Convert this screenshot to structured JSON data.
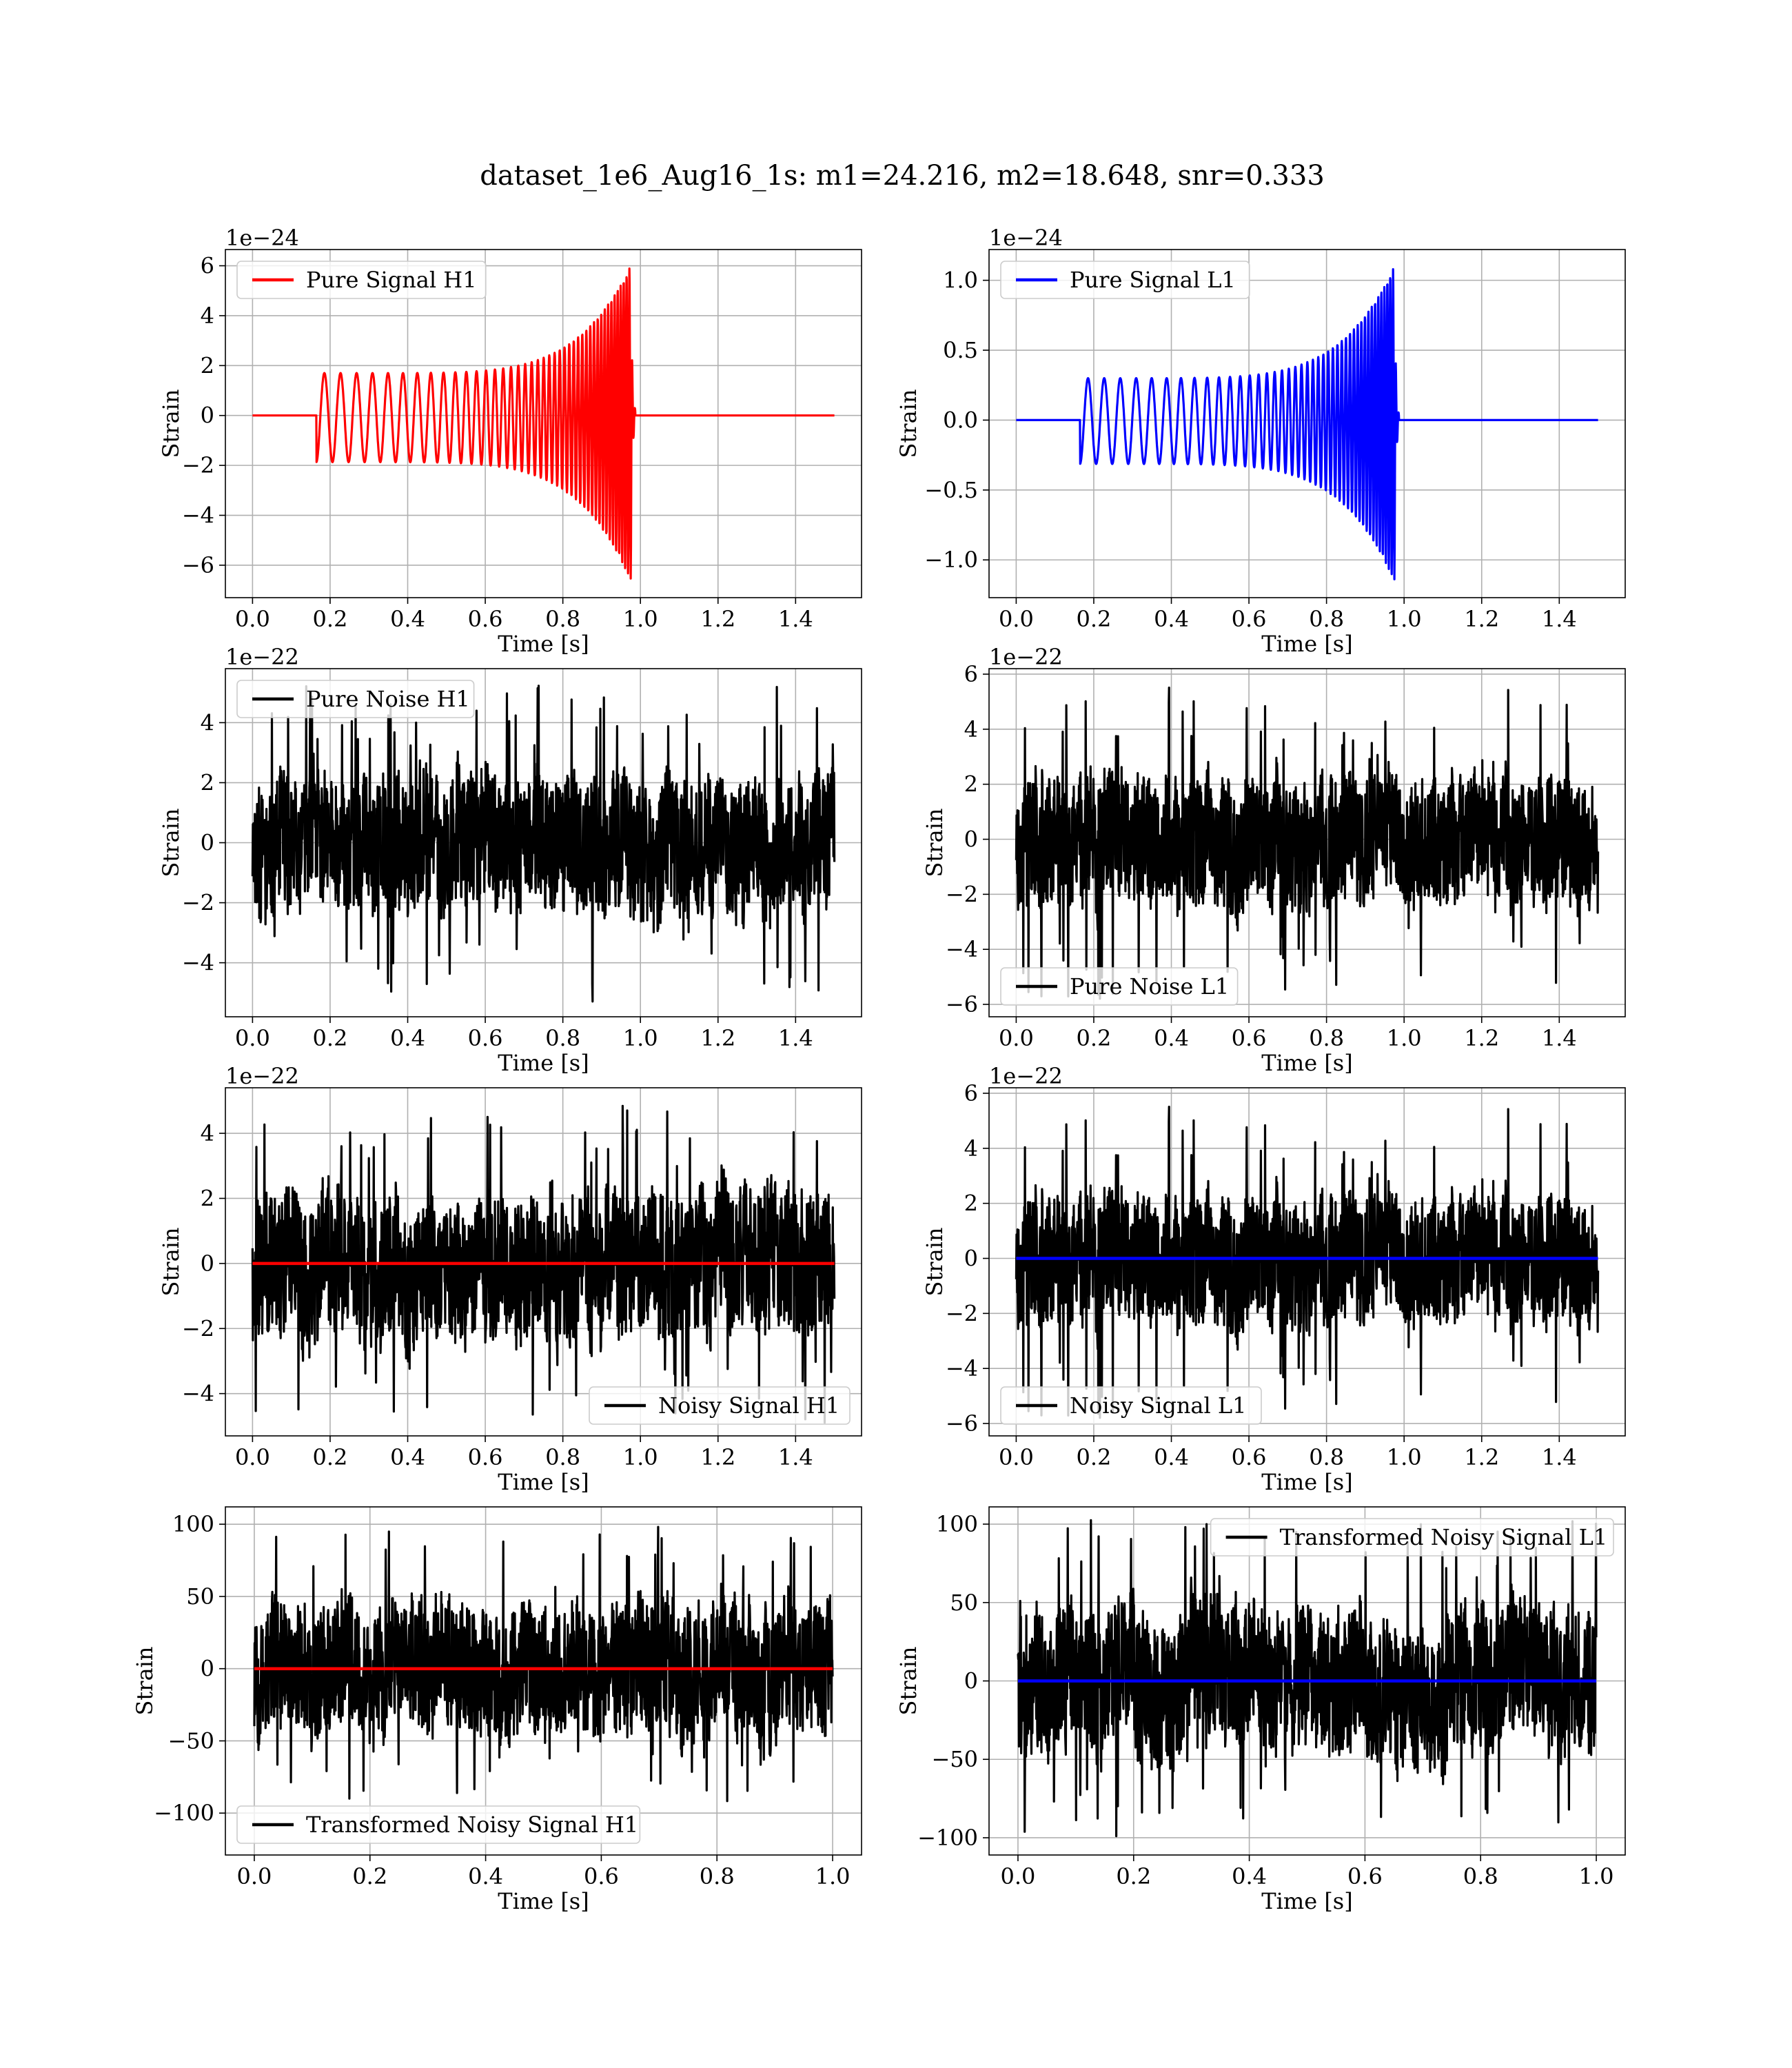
{
  "figure": {
    "title": "dataset_1e6_Aug16_1s: m1=24.216, m2=18.648, snr=0.333"
  },
  "chart_data": [
    {
      "id": "pure-signal-h1",
      "type": "line",
      "xlabel": "Time [s]",
      "ylabel": "Strain",
      "offset_text": "1e−24",
      "xlim": [
        -0.07,
        1.57
      ],
      "ylim": [
        -7.3,
        6.65
      ],
      "xticks": [
        0.0,
        0.2,
        0.4,
        0.6,
        0.8,
        1.0,
        1.2,
        1.4
      ],
      "xtick_labels": [
        "0.0",
        "0.2",
        "0.4",
        "0.6",
        "0.8",
        "1.0",
        "1.2",
        "1.4"
      ],
      "yticks": [
        -6,
        -4,
        -2,
        0,
        2,
        4,
        6
      ],
      "ytick_labels": [
        "−6",
        "−4",
        "−2",
        "0",
        "2",
        "4",
        "6"
      ],
      "grid": true,
      "legend": {
        "position": "upper-left"
      },
      "series": [
        {
          "name": "Pure Signal H1",
          "color": "#ff0000",
          "kind": "chirp",
          "x_start": 0.0,
          "x_end": 1.5,
          "t_on": 0.165,
          "t_merge": 0.975,
          "amp_start": 1.7,
          "amp_peak_pos": 6.0,
          "amp_peak_neg": -6.6,
          "freq_start": 24,
          "freq_end": 140
        }
      ]
    },
    {
      "id": "pure-signal-l1",
      "type": "line",
      "xlabel": "Time [s]",
      "ylabel": "Strain",
      "offset_text": "1e−24",
      "xlim": [
        -0.07,
        1.57
      ],
      "ylim": [
        -1.27,
        1.22
      ],
      "xticks": [
        0.0,
        0.2,
        0.4,
        0.6,
        0.8,
        1.0,
        1.2,
        1.4
      ],
      "xtick_labels": [
        "0.0",
        "0.2",
        "0.4",
        "0.6",
        "0.8",
        "1.0",
        "1.2",
        "1.4"
      ],
      "yticks": [
        -1.0,
        -0.5,
        0.0,
        0.5,
        1.0
      ],
      "ytick_labels": [
        "−1.0",
        "−0.5",
        "0.0",
        "0.5",
        "1.0"
      ],
      "grid": true,
      "legend": {
        "position": "upper-left"
      },
      "series": [
        {
          "name": "Pure Signal L1",
          "color": "#0000ff",
          "kind": "chirp",
          "x_start": 0.0,
          "x_end": 1.5,
          "t_on": 0.165,
          "t_merge": 0.975,
          "amp_start": 0.3,
          "amp_peak_pos": 1.1,
          "amp_peak_neg": -1.15,
          "freq_start": 24,
          "freq_end": 140
        }
      ]
    },
    {
      "id": "pure-noise-h1",
      "type": "line",
      "xlabel": "Time [s]",
      "ylabel": "Strain",
      "offset_text": "1e−22",
      "xlim": [
        -0.07,
        1.57
      ],
      "ylim": [
        -5.8,
        5.8
      ],
      "xticks": [
        0.0,
        0.2,
        0.4,
        0.6,
        0.8,
        1.0,
        1.2,
        1.4
      ],
      "xtick_labels": [
        "0.0",
        "0.2",
        "0.4",
        "0.6",
        "0.8",
        "1.0",
        "1.2",
        "1.4"
      ],
      "yticks": [
        -4,
        -2,
        0,
        2,
        4
      ],
      "ytick_labels": [
        "−4",
        "−2",
        "0",
        "2",
        "4"
      ],
      "grid": true,
      "legend": {
        "position": "upper-left"
      },
      "series": [
        {
          "name": "Pure Noise H1",
          "color": "#000000",
          "kind": "noise",
          "x_start": 0.0,
          "x_end": 1.5,
          "peak_max": 5.3,
          "peak_min": -5.3,
          "band": 2.2,
          "seed": 11
        }
      ]
    },
    {
      "id": "pure-noise-l1",
      "type": "line",
      "xlabel": "Time [s]",
      "ylabel": "Strain",
      "offset_text": "1e−22",
      "xlim": [
        -0.07,
        1.57
      ],
      "ylim": [
        -6.45,
        6.2
      ],
      "xticks": [
        0.0,
        0.2,
        0.4,
        0.6,
        0.8,
        1.0,
        1.2,
        1.4
      ],
      "xtick_labels": [
        "0.0",
        "0.2",
        "0.4",
        "0.6",
        "0.8",
        "1.0",
        "1.2",
        "1.4"
      ],
      "yticks": [
        -6,
        -4,
        -2,
        0,
        2,
        4,
        6
      ],
      "ytick_labels": [
        "−6",
        "−4",
        "−2",
        "0",
        "2",
        "4",
        "6"
      ],
      "grid": true,
      "legend": {
        "position": "lower-left"
      },
      "series": [
        {
          "name": "Pure Noise L1",
          "color": "#000000",
          "kind": "noise",
          "x_start": 0.0,
          "x_end": 1.5,
          "peak_max": 5.7,
          "peak_min": -5.9,
          "band": 2.3,
          "seed": 23
        }
      ]
    },
    {
      "id": "noisy-signal-h1",
      "type": "line",
      "xlabel": "Time [s]",
      "ylabel": "Strain",
      "offset_text": "1e−22",
      "xlim": [
        -0.07,
        1.57
      ],
      "ylim": [
        -5.3,
        5.4
      ],
      "xticks": [
        0.0,
        0.2,
        0.4,
        0.6,
        0.8,
        1.0,
        1.2,
        1.4
      ],
      "xtick_labels": [
        "0.0",
        "0.2",
        "0.4",
        "0.6",
        "0.8",
        "1.0",
        "1.2",
        "1.4"
      ],
      "yticks": [
        -4,
        -2,
        0,
        2,
        4
      ],
      "ytick_labels": [
        "−4",
        "−2",
        "0",
        "2",
        "4"
      ],
      "grid": true,
      "legend": {
        "position": "lower-right"
      },
      "series": [
        {
          "name": "Noisy Signal H1",
          "color": "#000000",
          "kind": "noise",
          "x_start": 0.0,
          "x_end": 1.5,
          "peak_max": 4.9,
          "peak_min": -4.9,
          "band": 2.2,
          "seed": 37
        },
        {
          "color": "#ff0000",
          "kind": "flat",
          "x_start": 0.0,
          "x_end": 1.5,
          "value": 0.0
        }
      ]
    },
    {
      "id": "noisy-signal-l1",
      "type": "line",
      "xlabel": "Time [s]",
      "ylabel": "Strain",
      "offset_text": "1e−22",
      "xlim": [
        -0.07,
        1.57
      ],
      "ylim": [
        -6.45,
        6.2
      ],
      "xticks": [
        0.0,
        0.2,
        0.4,
        0.6,
        0.8,
        1.0,
        1.2,
        1.4
      ],
      "xtick_labels": [
        "0.0",
        "0.2",
        "0.4",
        "0.6",
        "0.8",
        "1.0",
        "1.2",
        "1.4"
      ],
      "yticks": [
        -6,
        -4,
        -2,
        0,
        2,
        4,
        6
      ],
      "ytick_labels": [
        "−6",
        "−4",
        "−2",
        "0",
        "2",
        "4",
        "6"
      ],
      "grid": true,
      "legend": {
        "position": "lower-left"
      },
      "series": [
        {
          "name": "Noisy Signal L1",
          "color": "#000000",
          "kind": "noise",
          "x_start": 0.0,
          "x_end": 1.5,
          "peak_max": 5.7,
          "peak_min": -5.9,
          "band": 2.3,
          "seed": 23
        },
        {
          "color": "#0000ff",
          "kind": "flat",
          "x_start": 0.0,
          "x_end": 1.5,
          "value": 0.0
        }
      ]
    },
    {
      "id": "transformed-noisy-signal-h1",
      "type": "line",
      "xlabel": "Time [s]",
      "ylabel": "Strain",
      "offset_text": "",
      "xlim": [
        -0.05,
        1.05
      ],
      "ylim": [
        -129,
        112
      ],
      "xticks": [
        0.0,
        0.2,
        0.4,
        0.6,
        0.8,
        1.0
      ],
      "xtick_labels": [
        "0.0",
        "0.2",
        "0.4",
        "0.6",
        "0.8",
        "1.0"
      ],
      "yticks": [
        -100,
        -50,
        0,
        50,
        100
      ],
      "ytick_labels": [
        "−100",
        "−50",
        "0",
        "50",
        "100"
      ],
      "grid": true,
      "legend": {
        "position": "lower-left"
      },
      "series": [
        {
          "name": "Transformed Noisy Signal H1",
          "color": "#000000",
          "kind": "noise",
          "x_start": 0.0,
          "x_end": 1.0,
          "peak_max": 107,
          "peak_min": -95,
          "band": 45,
          "seed": 53
        },
        {
          "color": "#ff0000",
          "kind": "flat",
          "x_start": 0.0,
          "x_end": 1.0,
          "value": 0.0
        }
      ]
    },
    {
      "id": "transformed-noisy-signal-l1",
      "type": "line",
      "xlabel": "Time [s]",
      "ylabel": "Strain",
      "offset_text": "",
      "xlim": [
        -0.05,
        1.05
      ],
      "ylim": [
        -111,
        111
      ],
      "xticks": [
        0.0,
        0.2,
        0.4,
        0.6,
        0.8,
        1.0
      ],
      "xtick_labels": [
        "0.0",
        "0.2",
        "0.4",
        "0.6",
        "0.8",
        "1.0"
      ],
      "yticks": [
        -100,
        -50,
        0,
        50,
        100
      ],
      "ytick_labels": [
        "−100",
        "−50",
        "0",
        "50",
        "100"
      ],
      "grid": true,
      "legend": {
        "position": "upper-right"
      },
      "series": [
        {
          "name": "Transformed Noisy Signal L1",
          "color": "#000000",
          "kind": "noise",
          "x_start": 0.0,
          "x_end": 1.0,
          "peak_max": 103,
          "peak_min": -101,
          "band": 45,
          "seed": 71
        },
        {
          "color": "#0000ff",
          "kind": "flat",
          "x_start": 0.0,
          "x_end": 1.0,
          "value": 0.0
        }
      ]
    }
  ]
}
